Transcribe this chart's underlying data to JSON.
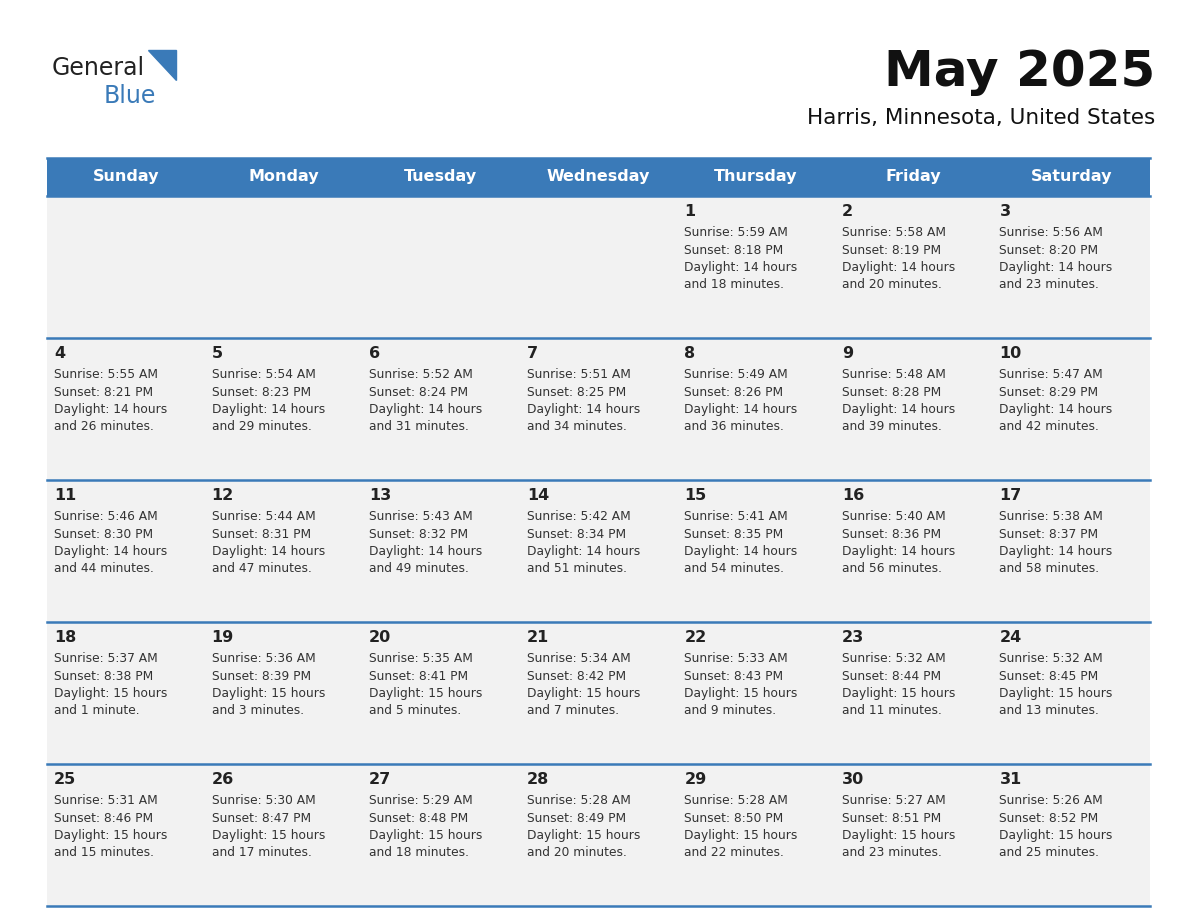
{
  "title": "May 2025",
  "subtitle": "Harris, Minnesota, United States",
  "days_of_week": [
    "Sunday",
    "Monday",
    "Tuesday",
    "Wednesday",
    "Thursday",
    "Friday",
    "Saturday"
  ],
  "header_bg": "#3a7ab8",
  "header_text": "#ffffff",
  "row_bg": "#f2f2f2",
  "text_color": "#333333",
  "border_color": "#3a7ab8",
  "num_color": "#222222",
  "title_color": "#111111",
  "calendar": [
    [
      null,
      null,
      null,
      null,
      {
        "day": 1,
        "sunrise": "5:59 AM",
        "sunset": "8:18 PM",
        "daylight": "14 hours\nand 18 minutes."
      },
      {
        "day": 2,
        "sunrise": "5:58 AM",
        "sunset": "8:19 PM",
        "daylight": "14 hours\nand 20 minutes."
      },
      {
        "day": 3,
        "sunrise": "5:56 AM",
        "sunset": "8:20 PM",
        "daylight": "14 hours\nand 23 minutes."
      }
    ],
    [
      {
        "day": 4,
        "sunrise": "5:55 AM",
        "sunset": "8:21 PM",
        "daylight": "14 hours\nand 26 minutes."
      },
      {
        "day": 5,
        "sunrise": "5:54 AM",
        "sunset": "8:23 PM",
        "daylight": "14 hours\nand 29 minutes."
      },
      {
        "day": 6,
        "sunrise": "5:52 AM",
        "sunset": "8:24 PM",
        "daylight": "14 hours\nand 31 minutes."
      },
      {
        "day": 7,
        "sunrise": "5:51 AM",
        "sunset": "8:25 PM",
        "daylight": "14 hours\nand 34 minutes."
      },
      {
        "day": 8,
        "sunrise": "5:49 AM",
        "sunset": "8:26 PM",
        "daylight": "14 hours\nand 36 minutes."
      },
      {
        "day": 9,
        "sunrise": "5:48 AM",
        "sunset": "8:28 PM",
        "daylight": "14 hours\nand 39 minutes."
      },
      {
        "day": 10,
        "sunrise": "5:47 AM",
        "sunset": "8:29 PM",
        "daylight": "14 hours\nand 42 minutes."
      }
    ],
    [
      {
        "day": 11,
        "sunrise": "5:46 AM",
        "sunset": "8:30 PM",
        "daylight": "14 hours\nand 44 minutes."
      },
      {
        "day": 12,
        "sunrise": "5:44 AM",
        "sunset": "8:31 PM",
        "daylight": "14 hours\nand 47 minutes."
      },
      {
        "day": 13,
        "sunrise": "5:43 AM",
        "sunset": "8:32 PM",
        "daylight": "14 hours\nand 49 minutes."
      },
      {
        "day": 14,
        "sunrise": "5:42 AM",
        "sunset": "8:34 PM",
        "daylight": "14 hours\nand 51 minutes."
      },
      {
        "day": 15,
        "sunrise": "5:41 AM",
        "sunset": "8:35 PM",
        "daylight": "14 hours\nand 54 minutes."
      },
      {
        "day": 16,
        "sunrise": "5:40 AM",
        "sunset": "8:36 PM",
        "daylight": "14 hours\nand 56 minutes."
      },
      {
        "day": 17,
        "sunrise": "5:38 AM",
        "sunset": "8:37 PM",
        "daylight": "14 hours\nand 58 minutes."
      }
    ],
    [
      {
        "day": 18,
        "sunrise": "5:37 AM",
        "sunset": "8:38 PM",
        "daylight": "15 hours\nand 1 minute."
      },
      {
        "day": 19,
        "sunrise": "5:36 AM",
        "sunset": "8:39 PM",
        "daylight": "15 hours\nand 3 minutes."
      },
      {
        "day": 20,
        "sunrise": "5:35 AM",
        "sunset": "8:41 PM",
        "daylight": "15 hours\nand 5 minutes."
      },
      {
        "day": 21,
        "sunrise": "5:34 AM",
        "sunset": "8:42 PM",
        "daylight": "15 hours\nand 7 minutes."
      },
      {
        "day": 22,
        "sunrise": "5:33 AM",
        "sunset": "8:43 PM",
        "daylight": "15 hours\nand 9 minutes."
      },
      {
        "day": 23,
        "sunrise": "5:32 AM",
        "sunset": "8:44 PM",
        "daylight": "15 hours\nand 11 minutes."
      },
      {
        "day": 24,
        "sunrise": "5:32 AM",
        "sunset": "8:45 PM",
        "daylight": "15 hours\nand 13 minutes."
      }
    ],
    [
      {
        "day": 25,
        "sunrise": "5:31 AM",
        "sunset": "8:46 PM",
        "daylight": "15 hours\nand 15 minutes."
      },
      {
        "day": 26,
        "sunrise": "5:30 AM",
        "sunset": "8:47 PM",
        "daylight": "15 hours\nand 17 minutes."
      },
      {
        "day": 27,
        "sunrise": "5:29 AM",
        "sunset": "8:48 PM",
        "daylight": "15 hours\nand 18 minutes."
      },
      {
        "day": 28,
        "sunrise": "5:28 AM",
        "sunset": "8:49 PM",
        "daylight": "15 hours\nand 20 minutes."
      },
      {
        "day": 29,
        "sunrise": "5:28 AM",
        "sunset": "8:50 PM",
        "daylight": "15 hours\nand 22 minutes."
      },
      {
        "day": 30,
        "sunrise": "5:27 AM",
        "sunset": "8:51 PM",
        "daylight": "15 hours\nand 23 minutes."
      },
      {
        "day": 31,
        "sunrise": "5:26 AM",
        "sunset": "8:52 PM",
        "daylight": "15 hours\nand 25 minutes."
      }
    ]
  ],
  "logo_text_general": "General",
  "logo_text_blue": "Blue",
  "logo_color_general": "#222222",
  "logo_color_blue": "#3a7ab8"
}
